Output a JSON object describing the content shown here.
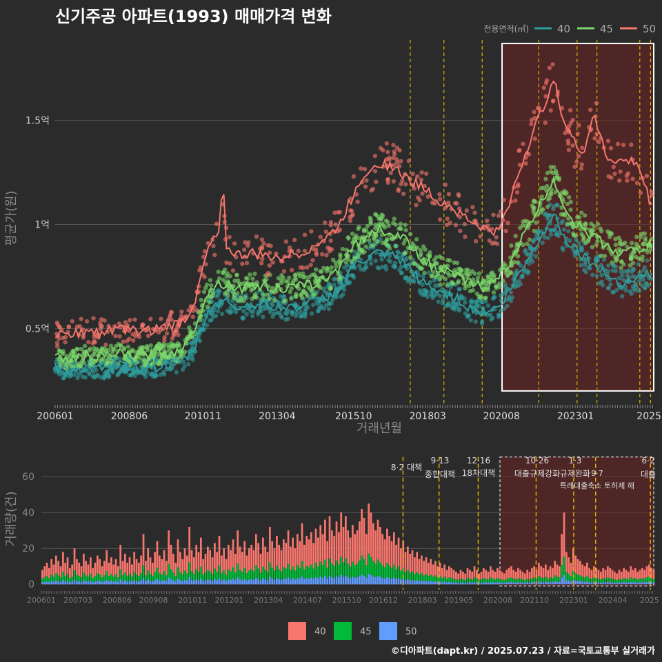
{
  "title": "신기주공 아파트(1993) 매매가격 변화",
  "footer": "©디아파트(dapt.kr) / 2025.07.23 / 자료=국토교통부 실거래가",
  "colors": {
    "s40": "#f8766d",
    "s45": "#7cd86a",
    "s50": "#2e9f9f",
    "b40": "#f8766d",
    "b45": "#00ba38",
    "b50": "#619cff",
    "event": "#e0b400",
    "highlight": "#6b2323"
  },
  "chart_data": [
    {
      "type": "line",
      "title": "신기주공 아파트(1993) 매매가격 변화",
      "xlabel": "거래년월",
      "ylabel": "평균가(원)",
      "legend_title": "전용면적(㎡)",
      "legend_position": "top-right",
      "x_ticks": [
        "200601",
        "200806",
        "201011",
        "201304",
        "201510",
        "201803",
        "202008",
        "202301",
        "2025"
      ],
      "y_ticks": [
        {
          "value": 0.5,
          "label": "0.5억"
        },
        {
          "value": 1.0,
          "label": "1억"
        },
        {
          "value": 1.5,
          "label": "1.5억"
        }
      ],
      "ylim": [
        0.14,
        1.92
      ],
      "xlim": [
        2006.0,
        2025.6
      ],
      "highlight_range": [
        2020.6,
        2025.6
      ],
      "event_lines": [
        2017.6,
        2018.7,
        2019.95,
        2021.8,
        2023.05,
        2023.7,
        2025.1,
        2025.45
      ],
      "series": [
        {
          "name": "40",
          "points": [
            [
              2006.0,
              0.31
            ],
            [
              2006.5,
              0.3
            ],
            [
              2007.0,
              0.31
            ],
            [
              2007.5,
              0.3
            ],
            [
              2008.0,
              0.32
            ],
            [
              2008.5,
              0.32
            ],
            [
              2009.0,
              0.31
            ],
            [
              2009.5,
              0.32
            ],
            [
              2010.0,
              0.33
            ],
            [
              2010.3,
              0.36
            ],
            [
              2010.6,
              0.42
            ],
            [
              2010.9,
              0.55
            ],
            [
              2011.2,
              0.62
            ],
            [
              2011.6,
              0.63
            ],
            [
              2012.0,
              0.6
            ],
            [
              2012.5,
              0.62
            ],
            [
              2013.0,
              0.61
            ],
            [
              2013.5,
              0.6
            ],
            [
              2014.0,
              0.61
            ],
            [
              2014.5,
              0.63
            ],
            [
              2015.0,
              0.66
            ],
            [
              2015.3,
              0.7
            ],
            [
              2015.6,
              0.78
            ],
            [
              2016.0,
              0.82
            ],
            [
              2016.5,
              0.86
            ],
            [
              2017.0,
              0.85
            ],
            [
              2017.5,
              0.8
            ],
            [
              2018.0,
              0.72
            ],
            [
              2018.5,
              0.68
            ],
            [
              2019.0,
              0.66
            ],
            [
              2019.5,
              0.6
            ],
            [
              2020.0,
              0.58
            ],
            [
              2020.5,
              0.6
            ],
            [
              2021.0,
              0.72
            ],
            [
              2021.5,
              0.85
            ],
            [
              2022.0,
              0.98
            ],
            [
              2022.3,
              1.05
            ],
            [
              2022.6,
              0.95
            ],
            [
              2023.0,
              0.88
            ],
            [
              2023.5,
              0.82
            ],
            [
              2024.0,
              0.76
            ],
            [
              2024.5,
              0.72
            ],
            [
              2025.0,
              0.74
            ],
            [
              2025.5,
              0.78
            ]
          ]
        },
        {
          "name": "45",
          "points": [
            [
              2006.0,
              0.36
            ],
            [
              2006.5,
              0.35
            ],
            [
              2007.0,
              0.37
            ],
            [
              2007.5,
              0.36
            ],
            [
              2008.0,
              0.38
            ],
            [
              2008.5,
              0.37
            ],
            [
              2009.0,
              0.37
            ],
            [
              2009.5,
              0.38
            ],
            [
              2010.0,
              0.39
            ],
            [
              2010.3,
              0.43
            ],
            [
              2010.6,
              0.52
            ],
            [
              2010.9,
              0.65
            ],
            [
              2011.2,
              0.71
            ],
            [
              2011.6,
              0.72
            ],
            [
              2012.0,
              0.69
            ],
            [
              2012.5,
              0.71
            ],
            [
              2013.0,
              0.7
            ],
            [
              2013.5,
              0.69
            ],
            [
              2014.0,
              0.7
            ],
            [
              2014.5,
              0.72
            ],
            [
              2015.0,
              0.75
            ],
            [
              2015.3,
              0.8
            ],
            [
              2015.6,
              0.88
            ],
            [
              2016.0,
              0.92
            ],
            [
              2016.5,
              0.98
            ],
            [
              2017.0,
              0.96
            ],
            [
              2017.5,
              0.92
            ],
            [
              2018.0,
              0.84
            ],
            [
              2018.5,
              0.78
            ],
            [
              2019.0,
              0.76
            ],
            [
              2019.5,
              0.72
            ],
            [
              2020.0,
              0.7
            ],
            [
              2020.5,
              0.74
            ],
            [
              2021.0,
              0.86
            ],
            [
              2021.5,
              1.0
            ],
            [
              2022.0,
              1.14
            ],
            [
              2022.3,
              1.22
            ],
            [
              2022.6,
              1.1
            ],
            [
              2023.0,
              1.0
            ],
            [
              2023.5,
              0.95
            ],
            [
              2024.0,
              0.9
            ],
            [
              2024.5,
              0.86
            ],
            [
              2025.0,
              0.88
            ],
            [
              2025.5,
              0.9
            ]
          ]
        },
        {
          "name": "50",
          "points": [
            [
              2006.0,
              0.47
            ],
            [
              2006.5,
              0.47
            ],
            [
              2007.0,
              0.49
            ],
            [
              2007.5,
              0.48
            ],
            [
              2008.0,
              0.5
            ],
            [
              2008.5,
              0.49
            ],
            [
              2009.0,
              0.49
            ],
            [
              2009.5,
              0.5
            ],
            [
              2010.0,
              0.52
            ],
            [
              2010.3,
              0.55
            ],
            [
              2010.6,
              0.65
            ],
            [
              2010.9,
              0.82
            ],
            [
              2011.1,
              0.94
            ],
            [
              2011.3,
              0.93
            ],
            [
              2011.5,
              1.2
            ],
            [
              2011.6,
              0.88
            ],
            [
              2012.0,
              0.85
            ],
            [
              2012.5,
              0.86
            ],
            [
              2013.0,
              0.84
            ],
            [
              2013.5,
              0.85
            ],
            [
              2014.0,
              0.86
            ],
            [
              2014.5,
              0.9
            ],
            [
              2015.0,
              0.95
            ],
            [
              2015.3,
              1.0
            ],
            [
              2015.6,
              1.1
            ],
            [
              2016.0,
              1.22
            ],
            [
              2016.5,
              1.3
            ],
            [
              2017.0,
              1.28
            ],
            [
              2017.5,
              1.22
            ],
            [
              2018.0,
              1.18
            ],
            [
              2018.5,
              1.12
            ],
            [
              2019.0,
              1.08
            ],
            [
              2019.5,
              1.02
            ],
            [
              2020.0,
              0.98
            ],
            [
              2020.5,
              0.96
            ],
            [
              2021.0,
              1.18
            ],
            [
              2021.5,
              1.4
            ],
            [
              2022.0,
              1.58
            ],
            [
              2022.3,
              1.72
            ],
            [
              2022.6,
              1.5
            ],
            [
              2023.0,
              1.38
            ],
            [
              2023.3,
              1.35
            ],
            [
              2023.6,
              1.55
            ],
            [
              2024.0,
              1.32
            ],
            [
              2024.5,
              1.3
            ],
            [
              2025.0,
              1.3
            ],
            [
              2025.5,
              1.08
            ]
          ]
        }
      ]
    },
    {
      "type": "bar",
      "ylabel": "거래량(건)",
      "stacked": true,
      "y_ticks": [
        0,
        20,
        40,
        60
      ],
      "ylim": [
        -3,
        72
      ],
      "x_ticks": [
        "200601",
        "200703",
        "200806",
        "200908",
        "201011",
        "201201",
        "201304",
        "201407",
        "201510",
        "201612",
        "201803",
        "201905",
        "202008",
        "202110",
        "202301",
        "202404",
        "2025"
      ],
      "highlight_range": [
        2020.6,
        2025.6
      ],
      "series_names": [
        "40",
        "45",
        "50"
      ],
      "monthly_totals": [
        8,
        10,
        12,
        9,
        14,
        11,
        16,
        13,
        10,
        18,
        12,
        15,
        9,
        11,
        20,
        14,
        12,
        10,
        17,
        13,
        11,
        15,
        9,
        12,
        16,
        14,
        10,
        13,
        19,
        12,
        15,
        11,
        14,
        10,
        22,
        13,
        17,
        12,
        15,
        11,
        18,
        14,
        12,
        16,
        28,
        13,
        20,
        15,
        12,
        18,
        24,
        16,
        14,
        19,
        13,
        30,
        22,
        17,
        12,
        25,
        18,
        14,
        20,
        16,
        32,
        19,
        15,
        22,
        18,
        26,
        14,
        17,
        21,
        19,
        15,
        23,
        18,
        27,
        16,
        20,
        14,
        22,
        19,
        25,
        17,
        30,
        21,
        18,
        24,
        16,
        20,
        22,
        19,
        28,
        23,
        17,
        26,
        21,
        18,
        32,
        24,
        20,
        27,
        22,
        19,
        25,
        23,
        30,
        21,
        26,
        20,
        28,
        24,
        34,
        22,
        27,
        25,
        29,
        23,
        31,
        26,
        33,
        28,
        36,
        24,
        38,
        30,
        27,
        35,
        29,
        40,
        32,
        38,
        30,
        26,
        33,
        28,
        30,
        35,
        42,
        37,
        28,
        45,
        40,
        34,
        30,
        36,
        32,
        28,
        25,
        31,
        27,
        24,
        29,
        22,
        26,
        20,
        24,
        18,
        21,
        17,
        19,
        15,
        18,
        14,
        16,
        13,
        15,
        12,
        14,
        11,
        13,
        10,
        12,
        9,
        11,
        8,
        10,
        9,
        8,
        7,
        6,
        8,
        7,
        6,
        9,
        8,
        7,
        10,
        8,
        6,
        7,
        9,
        8,
        7,
        10,
        8,
        7,
        9,
        8,
        7,
        6,
        8,
        9,
        10,
        8,
        7,
        9,
        8,
        7,
        6,
        8,
        7,
        9,
        10,
        8,
        12,
        10,
        9,
        11,
        8,
        10,
        9,
        13,
        11,
        10,
        28,
        40,
        18,
        15,
        12,
        20,
        16,
        14,
        13,
        11,
        10,
        12,
        9,
        8,
        10,
        9,
        8,
        7,
        9,
        8,
        10,
        9,
        8,
        7,
        6,
        8,
        7,
        9,
        8,
        7,
        10,
        8,
        9,
        7,
        8,
        9,
        8,
        10,
        11,
        9,
        8
      ],
      "share": {
        "40": 0.62,
        "45": 0.25,
        "50": 0.13
      },
      "annotations": [
        {
          "date_label": "8·2",
          "policy": "대책",
          "x": 2017.55
        },
        {
          "date_label": "9·13",
          "policy": "종합대책",
          "x": 2018.7
        },
        {
          "date_label": "12·16",
          "policy": "18차대책",
          "x": 2019.95
        },
        {
          "date_label": "10·26",
          "policy": "대출규제강화",
          "x": 2021.8
        },
        {
          "date_label": "1·3",
          "policy": "규제완화",
          "x": 2023.0
        },
        {
          "date_label": "9·7",
          "policy": "특례대출축소 토허제 해",
          "x": 2023.7
        },
        {
          "date_label": "6·2",
          "policy": "대출",
          "x": 2025.45
        }
      ]
    }
  ]
}
